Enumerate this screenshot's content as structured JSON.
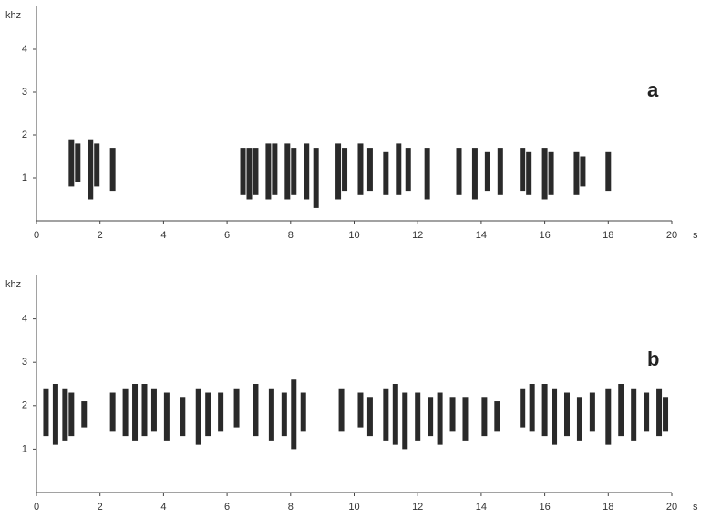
{
  "chart_data": [
    {
      "type": "spectrogram",
      "panel_label": "a",
      "y_unit": "khz",
      "x_unit": "s",
      "xlim": [
        0,
        20
      ],
      "xticks": [
        0,
        2,
        4,
        6,
        8,
        10,
        12,
        14,
        16,
        18,
        20
      ],
      "ylim": [
        0,
        5
      ],
      "yticks": [
        1,
        2,
        3,
        4
      ],
      "color": "#2a2a2a",
      "x": [
        1.1,
        1.3,
        1.7,
        1.9,
        2.4,
        6.5,
        6.7,
        6.9,
        7.3,
        7.5,
        7.9,
        8.1,
        8.5,
        8.8,
        9.5,
        9.7,
        10.2,
        10.5,
        11.0,
        11.4,
        11.7,
        12.3,
        13.3,
        13.8,
        14.2,
        14.6,
        15.3,
        15.5,
        16.0,
        16.2,
        17.0,
        17.2,
        18.0
      ],
      "low": [
        0.8,
        0.9,
        0.5,
        0.8,
        0.7,
        0.6,
        0.5,
        0.6,
        0.5,
        0.6,
        0.5,
        0.6,
        0.5,
        0.3,
        0.5,
        0.7,
        0.6,
        0.7,
        0.6,
        0.6,
        0.7,
        0.5,
        0.6,
        0.5,
        0.7,
        0.6,
        0.7,
        0.6,
        0.5,
        0.6,
        0.6,
        0.8,
        0.7
      ],
      "high": [
        1.9,
        1.8,
        1.9,
        1.8,
        1.7,
        1.7,
        1.7,
        1.7,
        1.8,
        1.8,
        1.8,
        1.7,
        1.8,
        1.7,
        1.8,
        1.7,
        1.8,
        1.7,
        1.6,
        1.8,
        1.7,
        1.7,
        1.7,
        1.7,
        1.6,
        1.7,
        1.7,
        1.6,
        1.7,
        1.6,
        1.6,
        1.5,
        1.6
      ]
    },
    {
      "type": "spectrogram",
      "panel_label": "b",
      "y_unit": "khz",
      "x_unit": "s",
      "xlim": [
        0,
        20
      ],
      "xticks": [
        0,
        2,
        4,
        6,
        8,
        10,
        12,
        14,
        16,
        18,
        20
      ],
      "ylim": [
        0,
        5
      ],
      "yticks": [
        1,
        2,
        3,
        4
      ],
      "color": "#2a2a2a",
      "x": [
        0.3,
        0.6,
        0.9,
        1.1,
        1.5,
        2.4,
        2.8,
        3.1,
        3.4,
        3.7,
        4.1,
        4.6,
        5.1,
        5.4,
        5.8,
        6.3,
        6.9,
        7.4,
        7.8,
        8.1,
        8.4,
        9.6,
        10.2,
        10.5,
        11.0,
        11.3,
        11.6,
        12.0,
        12.4,
        12.7,
        13.1,
        13.5,
        14.1,
        14.5,
        15.3,
        15.6,
        16.0,
        16.3,
        16.7,
        17.1,
        17.5,
        18.0,
        18.4,
        18.8,
        19.2,
        19.6,
        19.8
      ],
      "low": [
        1.3,
        1.1,
        1.2,
        1.3,
        1.5,
        1.4,
        1.3,
        1.2,
        1.3,
        1.4,
        1.2,
        1.3,
        1.1,
        1.3,
        1.4,
        1.5,
        1.3,
        1.2,
        1.3,
        1.0,
        1.4,
        1.4,
        1.5,
        1.3,
        1.2,
        1.1,
        1.0,
        1.2,
        1.3,
        1.1,
        1.4,
        1.2,
        1.3,
        1.4,
        1.5,
        1.4,
        1.3,
        1.1,
        1.3,
        1.2,
        1.4,
        1.1,
        1.3,
        1.2,
        1.4,
        1.3,
        1.4
      ],
      "high": [
        2.4,
        2.5,
        2.4,
        2.3,
        2.1,
        2.3,
        2.4,
        2.5,
        2.5,
        2.4,
        2.3,
        2.2,
        2.4,
        2.3,
        2.3,
        2.4,
        2.5,
        2.4,
        2.3,
        2.6,
        2.3,
        2.4,
        2.3,
        2.2,
        2.4,
        2.5,
        2.3,
        2.3,
        2.2,
        2.3,
        2.2,
        2.2,
        2.2,
        2.1,
        2.4,
        2.5,
        2.5,
        2.4,
        2.3,
        2.2,
        2.3,
        2.4,
        2.5,
        2.4,
        2.3,
        2.4,
        2.2
      ]
    }
  ]
}
